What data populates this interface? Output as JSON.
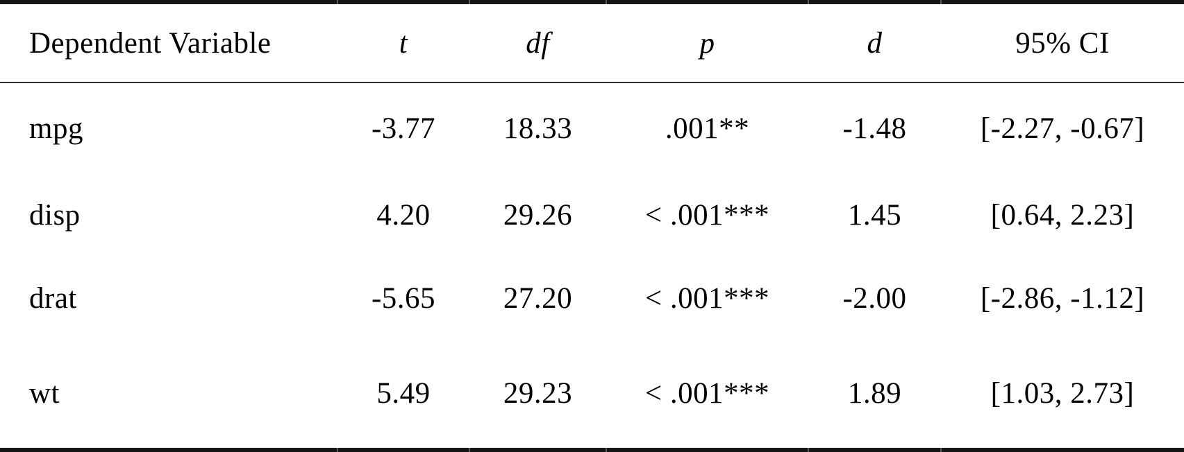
{
  "page": {
    "background_color": "#ffffff",
    "text_color": "#000000",
    "rule_color": "#151515"
  },
  "table": {
    "columns": [
      {
        "label": "Dependent Variable",
        "italic": false
      },
      {
        "label": "t",
        "italic": true
      },
      {
        "label": "df",
        "italic": true
      },
      {
        "label": "p",
        "italic": true
      },
      {
        "label": "d",
        "italic": true
      },
      {
        "label": "95% CI",
        "italic": false
      }
    ],
    "rows": [
      {
        "dependent_variable": "mpg",
        "t": "-3.77",
        "df": "18.33",
        "p": ".001**",
        "d": "-1.48",
        "ci_95": "[-2.27, -0.67]"
      },
      {
        "dependent_variable": "disp",
        "t": "4.20",
        "df": "29.26",
        "p": "< .001***",
        "d": "1.45",
        "ci_95": "[0.64, 2.23]"
      },
      {
        "dependent_variable": "drat",
        "t": "-5.65",
        "df": "27.20",
        "p": "< .001***",
        "d": "-2.00",
        "ci_95": "[-2.86, -1.12]"
      },
      {
        "dependent_variable": "wt",
        "t": "5.49",
        "df": "29.23",
        "p": "< .001***",
        "d": "1.89",
        "ci_95": "[1.03, 2.73]"
      }
    ]
  },
  "chart_data": {
    "type": "table",
    "columns": [
      "Dependent Variable",
      "t",
      "df",
      "p",
      "d",
      "95% CI"
    ],
    "rows": [
      [
        "mpg",
        "-3.77",
        "18.33",
        ".001**",
        "-1.48",
        "[-2.27, -0.67]"
      ],
      [
        "disp",
        "4.20",
        "29.26",
        "< .001***",
        "1.45",
        "[0.64, 2.23]"
      ],
      [
        "drat",
        "-5.65",
        "27.20",
        "< .001***",
        "-2.00",
        "[-2.86, -1.12]"
      ],
      [
        "wt",
        "5.49",
        "29.23",
        "< .001***",
        "1.89",
        "[1.03, 2.73]"
      ]
    ]
  }
}
